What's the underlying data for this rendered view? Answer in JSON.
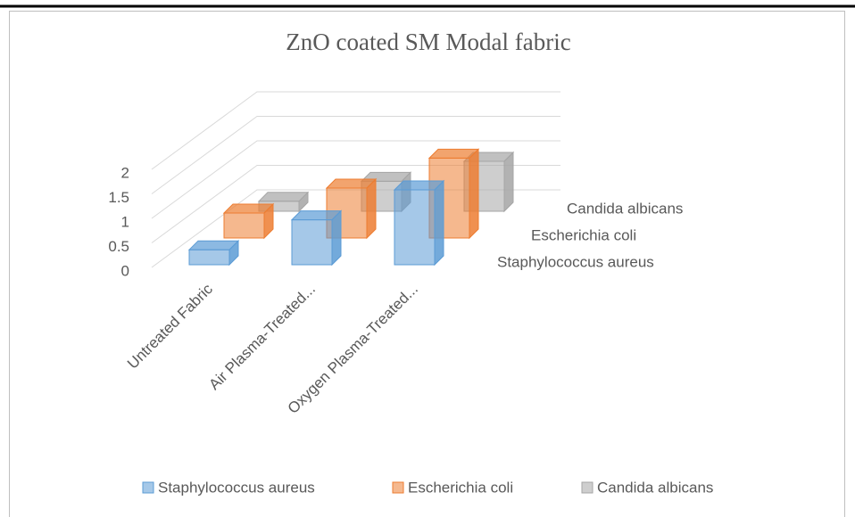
{
  "chart_data": {
    "type": "bar3d",
    "title": "ZnO coated SM Modal fabric",
    "categories": [
      "Untreated Fabric",
      "Air Plasma-Treated...",
      "Oxygen Plasma-Treated..."
    ],
    "series": [
      {
        "name": "Staphylococcus aureus",
        "color": "#5b9bd5",
        "values": [
          0.3,
          0.9,
          1.5
        ]
      },
      {
        "name": "Escherichia coli",
        "color": "#ed7d31",
        "values": [
          0.5,
          1.0,
          1.6
        ]
      },
      {
        "name": "Candida albicans",
        "color": "#a5a5a5",
        "values": [
          0.2,
          0.6,
          1.0
        ]
      }
    ],
    "ylim": [
      0,
      2
    ],
    "yticks": [
      0,
      0.5,
      1,
      1.5,
      2
    ],
    "grid": true,
    "legend": "bottom"
  }
}
